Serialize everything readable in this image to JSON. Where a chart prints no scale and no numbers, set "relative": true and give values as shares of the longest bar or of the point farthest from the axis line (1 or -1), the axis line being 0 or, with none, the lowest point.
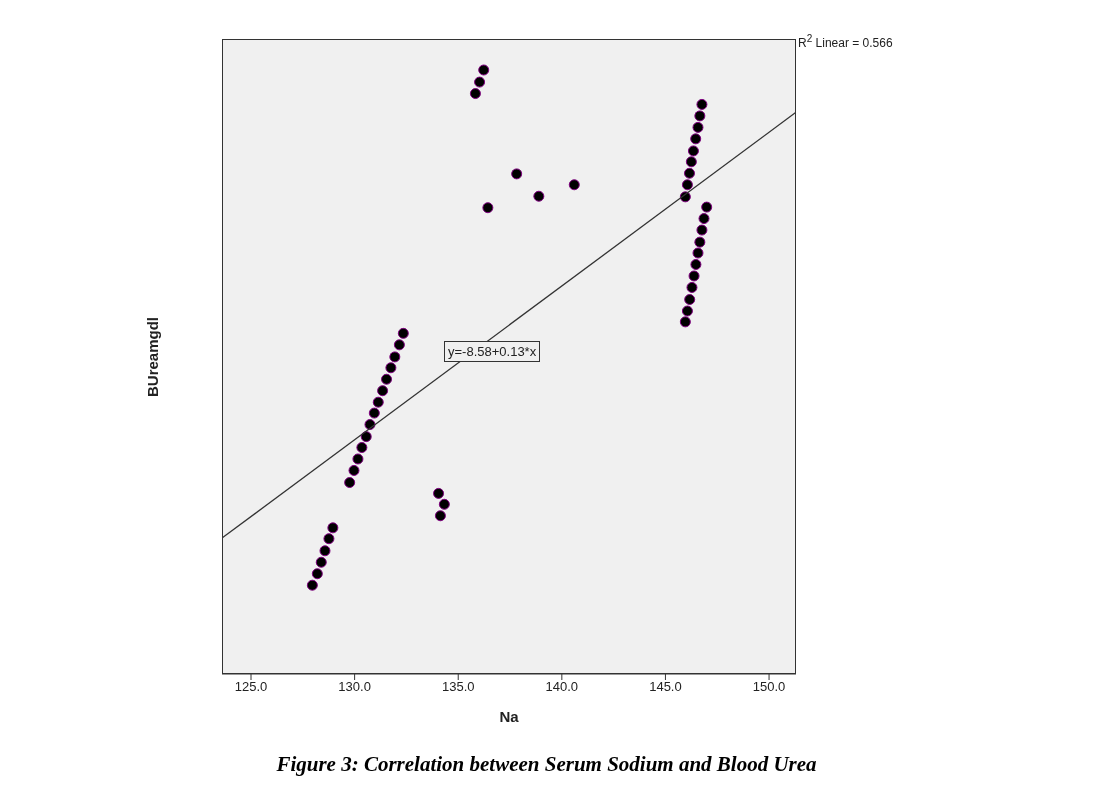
{
  "chart_data": {
    "type": "scatter",
    "title": "Figure 3: Correlation between Serum Sodium and Blood Urea",
    "xlabel": "Na",
    "ylabel": "BUreamgdl",
    "relative": true,
    "annotations": [
      "R$^{2}$ Linear = 0.566",
      "y=-8.58+0.13*x"
    ],
    "xlim": [
      123.6,
      151.3
    ],
    "xticks": [
      {
        "value": 125,
        "label": "125.0"
      },
      {
        "value": 130,
        "label": "130.0"
      },
      {
        "value": 135,
        "label": "135.0"
      },
      {
        "value": 140,
        "label": "140.0"
      },
      {
        "value": 145,
        "label": "145.0"
      },
      {
        "value": 150,
        "label": "150.0"
      }
    ],
    "grid": false,
    "series": [
      {
        "marker": "circle",
        "color": "#000000",
        "x": [
          127.96,
          128.2,
          128.39,
          128.57,
          128.76,
          128.95,
          129.76,
          129.97,
          130.16,
          130.35,
          130.56,
          130.74,
          130.95,
          131.14,
          131.35,
          131.54,
          131.75,
          131.94,
          132.16,
          132.35,
          134.05,
          134.33,
          134.14,
          136.23,
          136.03,
          135.83,
          137.82,
          140.6,
          138.89,
          136.43,
          146.76,
          146.66,
          146.57,
          146.46,
          146.35,
          146.25,
          146.16,
          146.06,
          145.96,
          146.99,
          146.86,
          146.76,
          146.66,
          146.57,
          146.47,
          146.38,
          146.28,
          146.17,
          146.06,
          145.96
        ],
        "values": [
          0.147,
          0.166,
          0.185,
          0.204,
          0.224,
          0.242,
          0.317,
          0.337,
          0.356,
          0.375,
          0.393,
          0.413,
          0.432,
          0.45,
          0.469,
          0.488,
          0.507,
          0.525,
          0.545,
          0.564,
          0.299,
          0.281,
          0.262,
          1.0,
          0.98,
          0.961,
          0.828,
          0.81,
          0.791,
          0.772,
          0.943,
          0.924,
          0.905,
          0.886,
          0.866,
          0.848,
          0.829,
          0.81,
          0.79,
          0.773,
          0.754,
          0.735,
          0.715,
          0.697,
          0.678,
          0.659,
          0.64,
          0.62,
          0.601,
          0.583
        ]
      },
      {
        "type": "line",
        "color": "#333333",
        "x": [
          123.6,
          151.3
        ],
        "values": [
          0.225,
          0.93
        ]
      }
    ]
  }
}
